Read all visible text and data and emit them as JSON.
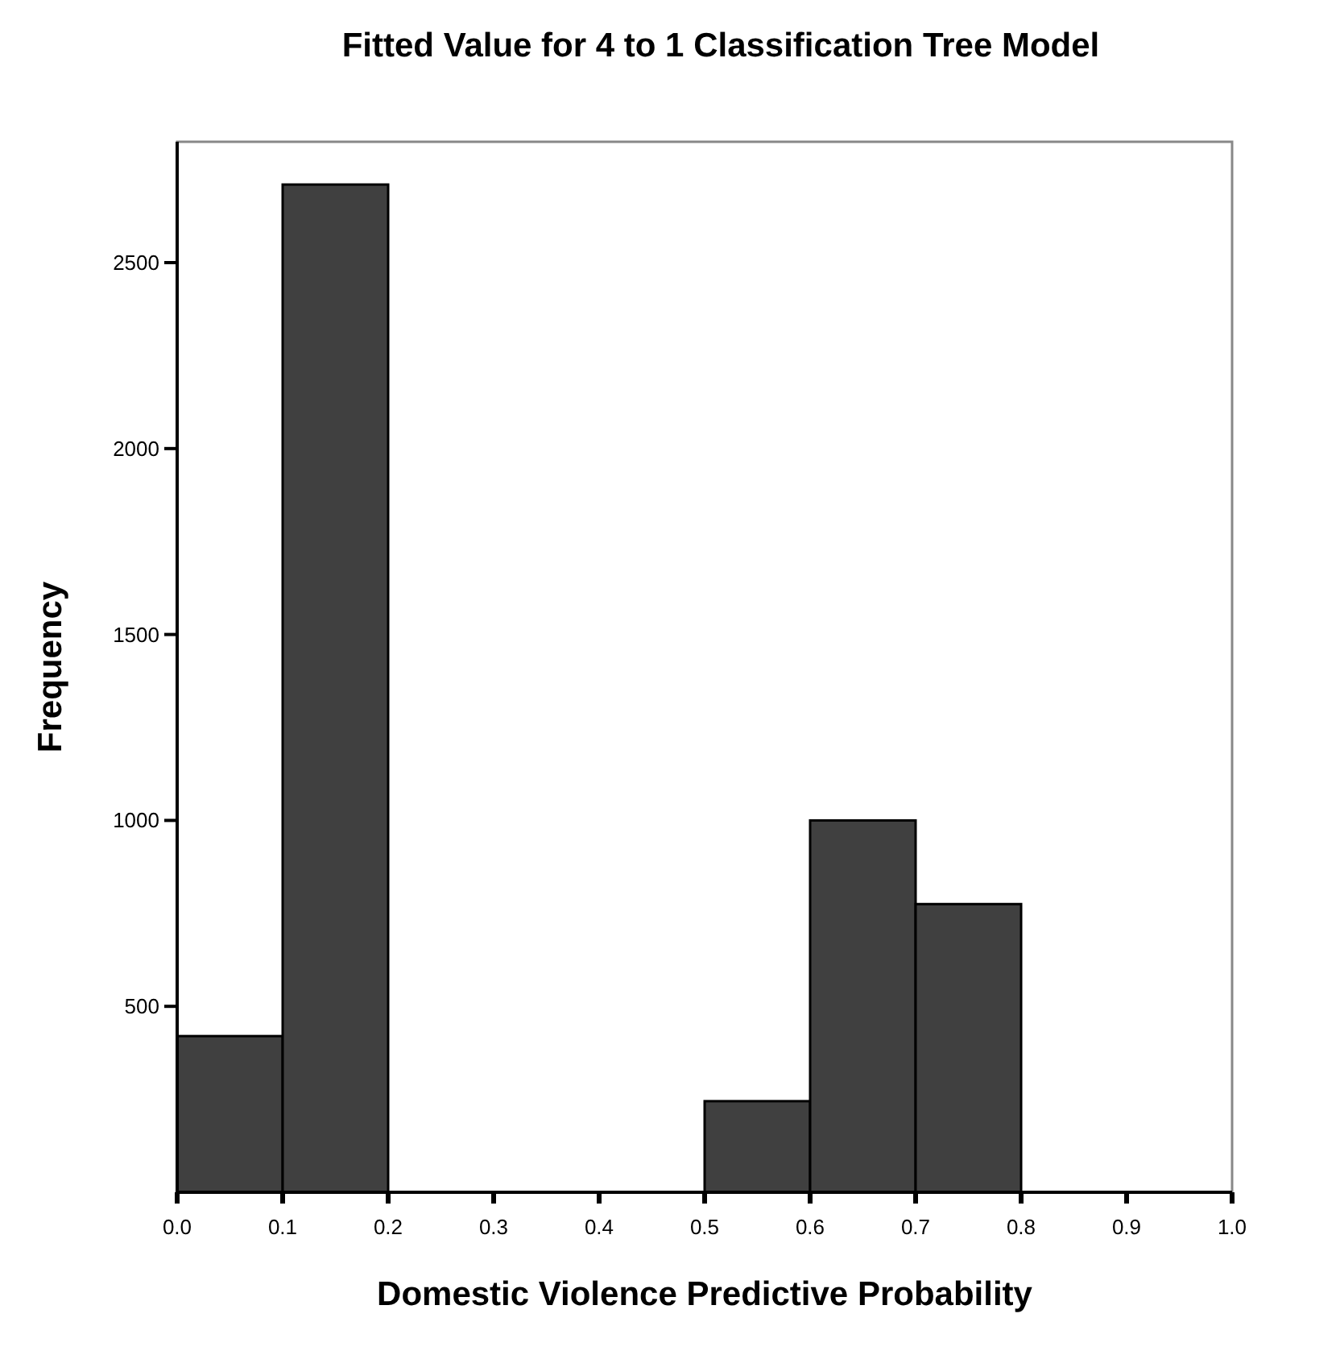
{
  "chart_data": {
    "type": "histogram",
    "title": "Fitted Value for 4 to 1 Classification Tree Model",
    "xlabel": "Domestic Violence Predictive Probability",
    "ylabel": "Frequency",
    "bins": [
      0,
      0.1,
      0.2,
      0.3,
      0.4,
      0.5,
      0.6,
      0.7,
      0.8,
      0.9,
      1.0
    ],
    "values": [
      420,
      2710,
      0,
      0,
      0,
      245,
      1000,
      775,
      0,
      0
    ],
    "color": "#404040",
    "xlim": [
      0,
      1
    ],
    "xticks": [
      {
        "value": 0,
        "label": "0.0"
      },
      {
        "value": 0.1,
        "label": "0.1"
      },
      {
        "value": 0.2,
        "label": "0.2"
      },
      {
        "value": 0.3,
        "label": "0.3"
      },
      {
        "value": 0.4,
        "label": "0.4"
      },
      {
        "value": 0.5,
        "label": "0.5"
      },
      {
        "value": 0.6,
        "label": "0.6"
      },
      {
        "value": 0.7,
        "label": "0.7"
      },
      {
        "value": 0.8,
        "label": "0.8"
      },
      {
        "value": 0.9,
        "label": "0.9"
      },
      {
        "value": 1,
        "label": "1.0"
      }
    ],
    "ylim": [
      0,
      2825
    ],
    "yticks": [
      500,
      1000,
      1500,
      2000,
      2500
    ],
    "grid": false
  }
}
